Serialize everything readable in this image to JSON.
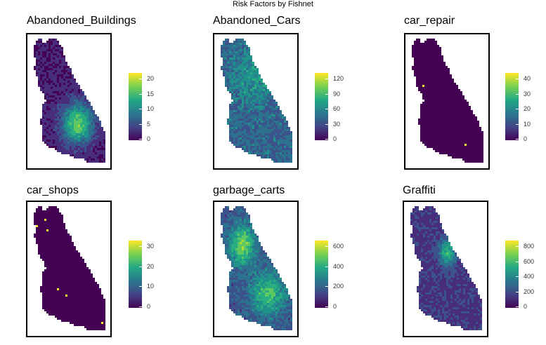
{
  "figure": {
    "title": "Risk Factors by Fishnet"
  },
  "palette": {
    "low": "#440154",
    "mid": "#21918c",
    "high": "#fde725"
  },
  "panels": [
    {
      "title": "Abandoned_Buildings",
      "legend_ticks": [
        "20",
        "15",
        "10",
        "5",
        "0"
      ],
      "max": 23,
      "hotspot": "south-central"
    },
    {
      "title": "Abandoned_Cars",
      "legend_ticks": [
        "120",
        "90",
        "60",
        "30",
        "0"
      ],
      "max": 125,
      "hotspot": "dispersed"
    },
    {
      "title": "car_repair",
      "legend_ticks": [
        "40",
        "30",
        "20",
        "10",
        "0"
      ],
      "max": 43,
      "hotspot": "sparse"
    },
    {
      "title": "car_shops",
      "legend_ticks": [
        "30",
        "20",
        "10",
        "0"
      ],
      "max": 37,
      "hotspot": "sparse"
    },
    {
      "title": "garbage_carts",
      "legend_ticks": [
        "600",
        "400",
        "200",
        "0"
      ],
      "max": 640,
      "hotspot": "west-and-south"
    },
    {
      "title": "Graffiti",
      "legend_ticks": [
        "800",
        "600",
        "400",
        "200",
        "0"
      ],
      "max": 880,
      "hotspot": "north-central"
    }
  ]
}
